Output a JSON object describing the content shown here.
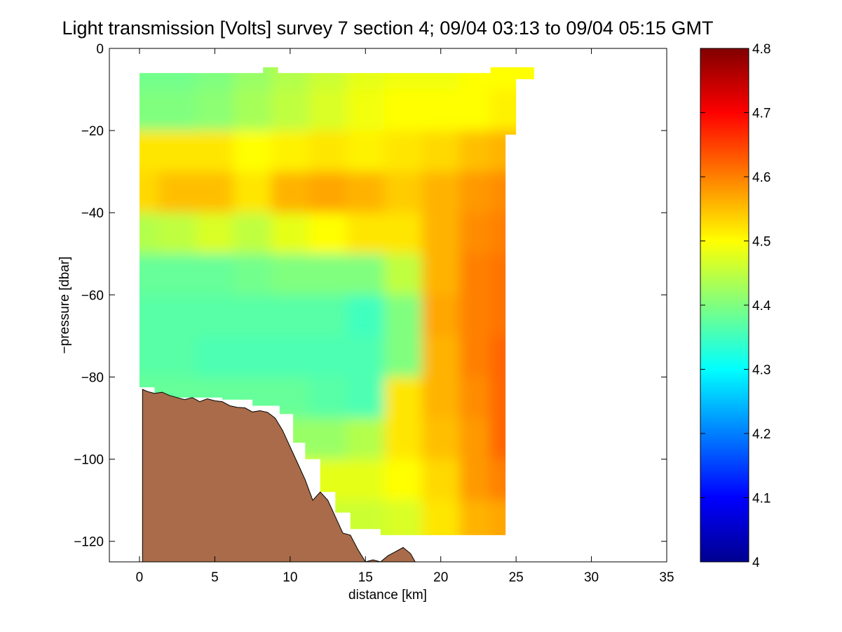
{
  "figure": {
    "title": "Light transmission [Volts] survey 7 section 4; 09/04 03:13 to 09/04 05:15 GMT"
  },
  "chart_data": {
    "type": "heatmap",
    "title": "Light transmission [Volts] survey 7 section 4; 09/04 03:13 to 09/04 05:15 GMT",
    "xlabel": "distance [km]",
    "ylabel": "−pressure [dbar]",
    "xlim": [
      -2,
      35
    ],
    "ylim": [
      -125,
      0
    ],
    "xticks": [
      0,
      5,
      10,
      15,
      20,
      25,
      30,
      35
    ],
    "yticks": [
      0,
      -20,
      -40,
      -60,
      -80,
      -100,
      -120
    ],
    "xtick_labels": [
      "0",
      "5",
      "10",
      "15",
      "20",
      "25",
      "30",
      "35"
    ],
    "ytick_labels": [
      "0",
      "−20",
      "−40",
      "−60",
      "−80",
      "−100",
      "−120"
    ],
    "colorbar": {
      "range": [
        4.0,
        4.8
      ],
      "ticks": [
        4.0,
        4.1,
        4.2,
        4.3,
        4.4,
        4.5,
        4.6,
        4.7,
        4.8
      ],
      "tick_labels": [
        "4",
        "4.1",
        "4.2",
        "4.3",
        "4.4",
        "4.5",
        "4.6",
        "4.7",
        "4.8"
      ],
      "colormap": "jet"
    },
    "field": {
      "note_units": "Volts",
      "x_extent": [
        0,
        24.3
      ],
      "sample_x": [
        0,
        2.5,
        5,
        7.5,
        10,
        12.5,
        15,
        17.5,
        20,
        22.5,
        24
      ],
      "sample_y": [
        -5,
        -15,
        -25,
        -35,
        -45,
        -55,
        -65,
        -75,
        -85,
        -95,
        -105,
        -115
      ],
      "values": [
        [
          4.39,
          4.39,
          4.4,
          4.42,
          4.44,
          4.46,
          4.48,
          4.49,
          4.49,
          4.5,
          4.5
        ],
        [
          4.4,
          4.4,
          4.41,
          4.43,
          4.45,
          4.47,
          4.49,
          4.5,
          4.5,
          4.5,
          4.51
        ],
        [
          4.52,
          4.52,
          4.52,
          4.5,
          4.51,
          4.52,
          4.51,
          4.52,
          4.53,
          4.55,
          4.56
        ],
        [
          4.53,
          4.55,
          4.55,
          4.52,
          4.56,
          4.57,
          4.56,
          4.54,
          4.56,
          4.58,
          4.59
        ],
        [
          4.44,
          4.45,
          4.47,
          4.45,
          4.48,
          4.5,
          4.52,
          4.52,
          4.56,
          4.59,
          4.6
        ],
        [
          4.38,
          4.38,
          4.38,
          4.39,
          4.4,
          4.4,
          4.4,
          4.45,
          4.56,
          4.6,
          4.61
        ],
        [
          4.37,
          4.37,
          4.37,
          4.37,
          4.37,
          4.37,
          4.35,
          4.4,
          4.57,
          4.6,
          4.61
        ],
        [
          4.37,
          4.37,
          4.36,
          4.36,
          4.36,
          4.36,
          4.36,
          4.4,
          4.56,
          4.6,
          4.62
        ],
        [
          null,
          null,
          null,
          null,
          4.38,
          4.37,
          4.36,
          4.52,
          4.56,
          4.59,
          4.62
        ],
        [
          null,
          null,
          null,
          null,
          null,
          4.42,
          4.44,
          4.52,
          4.55,
          4.58,
          4.62
        ],
        [
          null,
          null,
          null,
          null,
          null,
          null,
          4.48,
          4.5,
          4.53,
          4.58,
          4.6
        ],
        [
          null,
          null,
          null,
          null,
          null,
          null,
          4.46,
          4.47,
          4.52,
          4.56,
          4.57
        ]
      ]
    },
    "bathymetry": {
      "x": [
        0.2,
        0.5,
        1.0,
        1.5,
        2.0,
        2.5,
        3.0,
        3.5,
        4.0,
        4.5,
        5.0,
        5.5,
        6.0,
        6.5,
        7.0,
        7.5,
        8.0,
        8.5,
        9.0,
        9.5,
        10.0,
        10.5,
        11.0,
        11.5,
        12.0,
        12.5,
        13.0,
        13.5,
        14.0,
        14.5,
        15.0,
        15.5,
        16.0,
        16.5,
        17.0,
        17.5,
        18.0,
        18.3
      ],
      "y": [
        -83,
        -83.5,
        -84,
        -83.7,
        -84.5,
        -85,
        -85.5,
        -85,
        -86,
        -85.3,
        -85.8,
        -86,
        -87,
        -87.4,
        -87.5,
        -88.5,
        -88.2,
        -88.6,
        -90,
        -93,
        -97,
        -101,
        -105,
        -110,
        -108,
        -110,
        -114,
        -118,
        -118.5,
        -122,
        -125,
        -124.5,
        -125,
        -123.5,
        -122.5,
        -121.5,
        -123,
        -125
      ]
    }
  },
  "colors": {
    "terrain": "#a96b49",
    "terrain_outline": "#000000",
    "axes": "#000000",
    "background": "#ffffff"
  }
}
